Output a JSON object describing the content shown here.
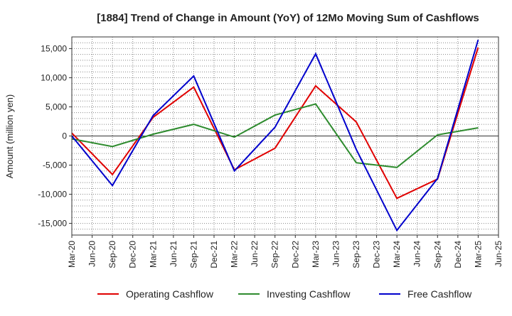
{
  "chart_data": {
    "type": "line",
    "title": "[1884]  Trend of Change in Amount (YoY) of 12Mo Moving Sum of Cashflows",
    "xlabel": "",
    "ylabel": "Amount (million yen)",
    "ylim": [
      -17000,
      17000
    ],
    "yticks": [
      -15000,
      -10000,
      -5000,
      0,
      5000,
      10000,
      15000
    ],
    "ytick_labels": [
      "-15,000",
      "-10,000",
      "-5,000",
      "0",
      "5,000",
      "10,000",
      "15,000"
    ],
    "categories": [
      "Mar-20",
      "Jun-20",
      "Sep-20",
      "Dec-20",
      "Mar-21",
      "Jun-21",
      "Sep-21",
      "Dec-21",
      "Mar-22",
      "Jun-22",
      "Sep-22",
      "Dec-22",
      "Mar-23",
      "Jun-23",
      "Sep-23",
      "Dec-23",
      "Mar-24",
      "Jun-24",
      "Sep-24",
      "Dec-24",
      "Mar-25",
      "Jun-25"
    ],
    "grid": true,
    "legend_position": "bottom",
    "series": [
      {
        "name": "Operating Cashflow",
        "color": "#e00000",
        "points": [
          {
            "x": "Mar-20",
            "y": 500
          },
          {
            "x": "Sep-20",
            "y": -6600
          },
          {
            "x": "Mar-21",
            "y": 3200
          },
          {
            "x": "Sep-21",
            "y": 8400
          },
          {
            "x": "Mar-22",
            "y": -5800
          },
          {
            "x": "Sep-22",
            "y": -2100
          },
          {
            "x": "Mar-23",
            "y": 8600
          },
          {
            "x": "Sep-23",
            "y": 2400
          },
          {
            "x": "Mar-24",
            "y": -10700
          },
          {
            "x": "Sep-24",
            "y": -7400
          },
          {
            "x": "Mar-25",
            "y": 15200
          }
        ]
      },
      {
        "name": "Investing Cashflow",
        "color": "#2e8b2e",
        "points": [
          {
            "x": "Mar-20",
            "y": -500
          },
          {
            "x": "Sep-20",
            "y": -1800
          },
          {
            "x": "Mar-21",
            "y": 300
          },
          {
            "x": "Sep-21",
            "y": 2000
          },
          {
            "x": "Mar-22",
            "y": -200
          },
          {
            "x": "Sep-22",
            "y": 3600
          },
          {
            "x": "Mar-23",
            "y": 5500
          },
          {
            "x": "Sep-23",
            "y": -4600
          },
          {
            "x": "Mar-24",
            "y": -5400
          },
          {
            "x": "Sep-24",
            "y": 200
          },
          {
            "x": "Mar-25",
            "y": 1400
          }
        ]
      },
      {
        "name": "Free Cashflow",
        "color": "#0000cc",
        "points": [
          {
            "x": "Mar-20",
            "y": 0
          },
          {
            "x": "Sep-20",
            "y": -8500
          },
          {
            "x": "Mar-21",
            "y": 3500
          },
          {
            "x": "Sep-21",
            "y": 10300
          },
          {
            "x": "Mar-22",
            "y": -6000
          },
          {
            "x": "Sep-22",
            "y": 1500
          },
          {
            "x": "Mar-23",
            "y": 14100
          },
          {
            "x": "Sep-23",
            "y": -2300
          },
          {
            "x": "Mar-24",
            "y": -16200
          },
          {
            "x": "Sep-24",
            "y": -7300
          },
          {
            "x": "Mar-25",
            "y": 16500
          }
        ]
      }
    ]
  }
}
